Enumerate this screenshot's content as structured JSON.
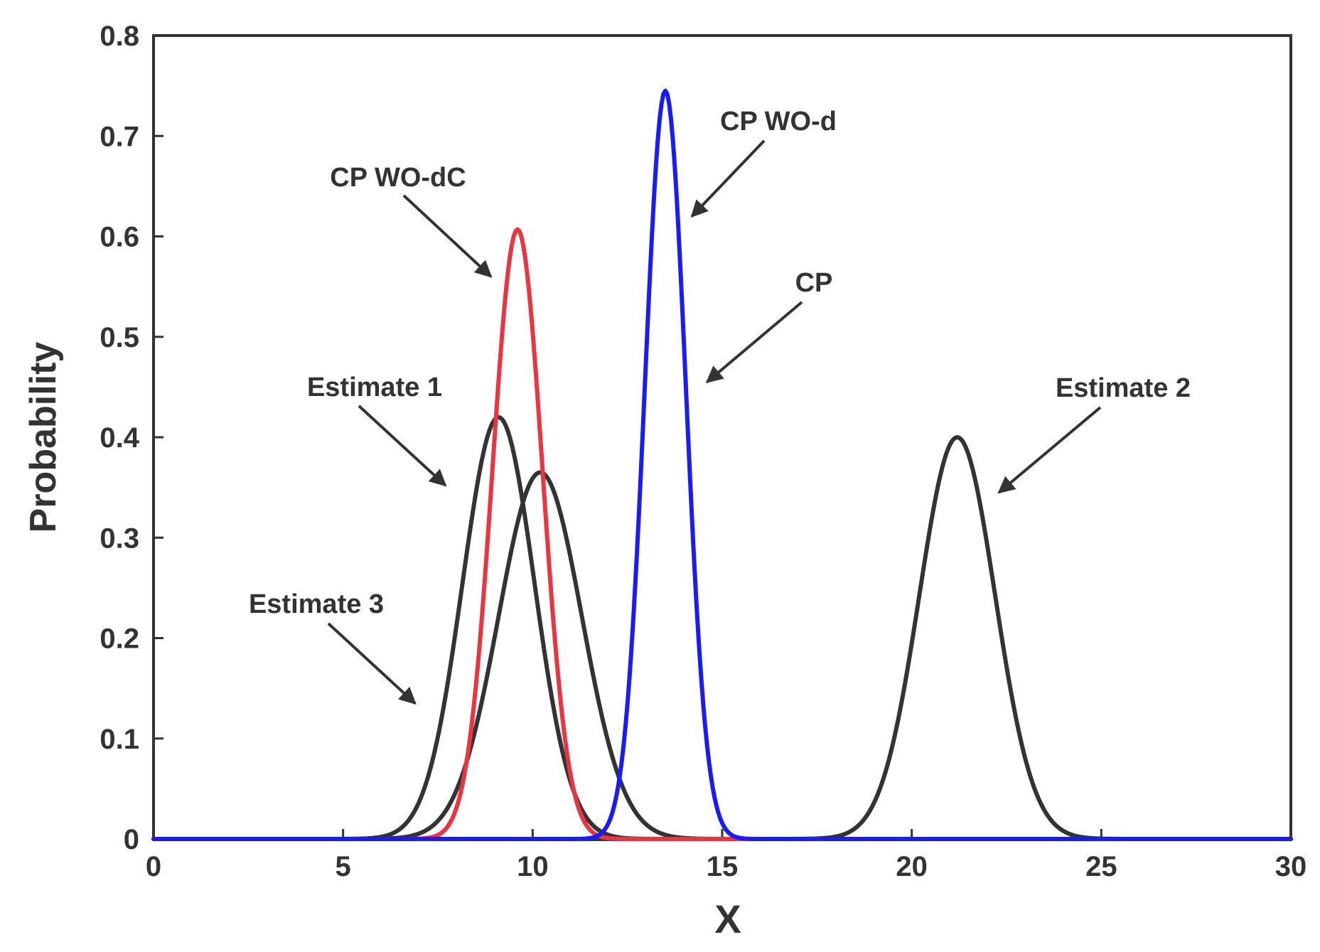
{
  "chart_data": {
    "type": "line",
    "title": "",
    "xlabel": "X",
    "ylabel": "Probability",
    "xlim": [
      0,
      30
    ],
    "ylim": [
      0,
      0.8
    ],
    "x_ticks": [
      "0",
      "5",
      "10",
      "15",
      "20",
      "25",
      "30"
    ],
    "y_ticks": [
      "0",
      "0.1",
      "0.2",
      "0.3",
      "0.4",
      "0.5",
      "0.6",
      "0.7",
      "0.8"
    ],
    "grid": false,
    "series": [
      {
        "name": "Estimate 1",
        "color": "#333333",
        "distribution": "normal",
        "mean": 9.1,
        "std": 0.95,
        "peak": 0.42
      },
      {
        "name": "Estimate 3",
        "color": "#333333",
        "distribution": "normal",
        "mean": 10.2,
        "std": 1.1,
        "peak": 0.365
      },
      {
        "name": "Estimate 2",
        "color": "#333333",
        "distribution": "normal",
        "mean": 21.2,
        "std": 1.0,
        "peak": 0.4
      },
      {
        "name": "CP WO-dC",
        "color": "#ee3340",
        "distribution": "normal",
        "mean": 9.6,
        "std": 0.66,
        "peak": 0.607
      },
      {
        "name": "CP WO-d",
        "color": "#1a1aff",
        "distribution": "normal",
        "mean": 13.5,
        "std": 0.54,
        "peak": 0.745
      }
    ],
    "annotations": [
      {
        "text": "CP WO-d",
        "target": [
          14.2,
          0.62
        ]
      },
      {
        "text": "CP WO-dC",
        "target": [
          8.9,
          0.56
        ]
      },
      {
        "text": "CP",
        "target": [
          14.6,
          0.455
        ]
      },
      {
        "text": "Estimate 1",
        "target": [
          7.7,
          0.352
        ]
      },
      {
        "text": "Estimate 2",
        "target": [
          22.3,
          0.345
        ]
      },
      {
        "text": "Estimate 3",
        "target": [
          6.9,
          0.135
        ]
      }
    ]
  }
}
